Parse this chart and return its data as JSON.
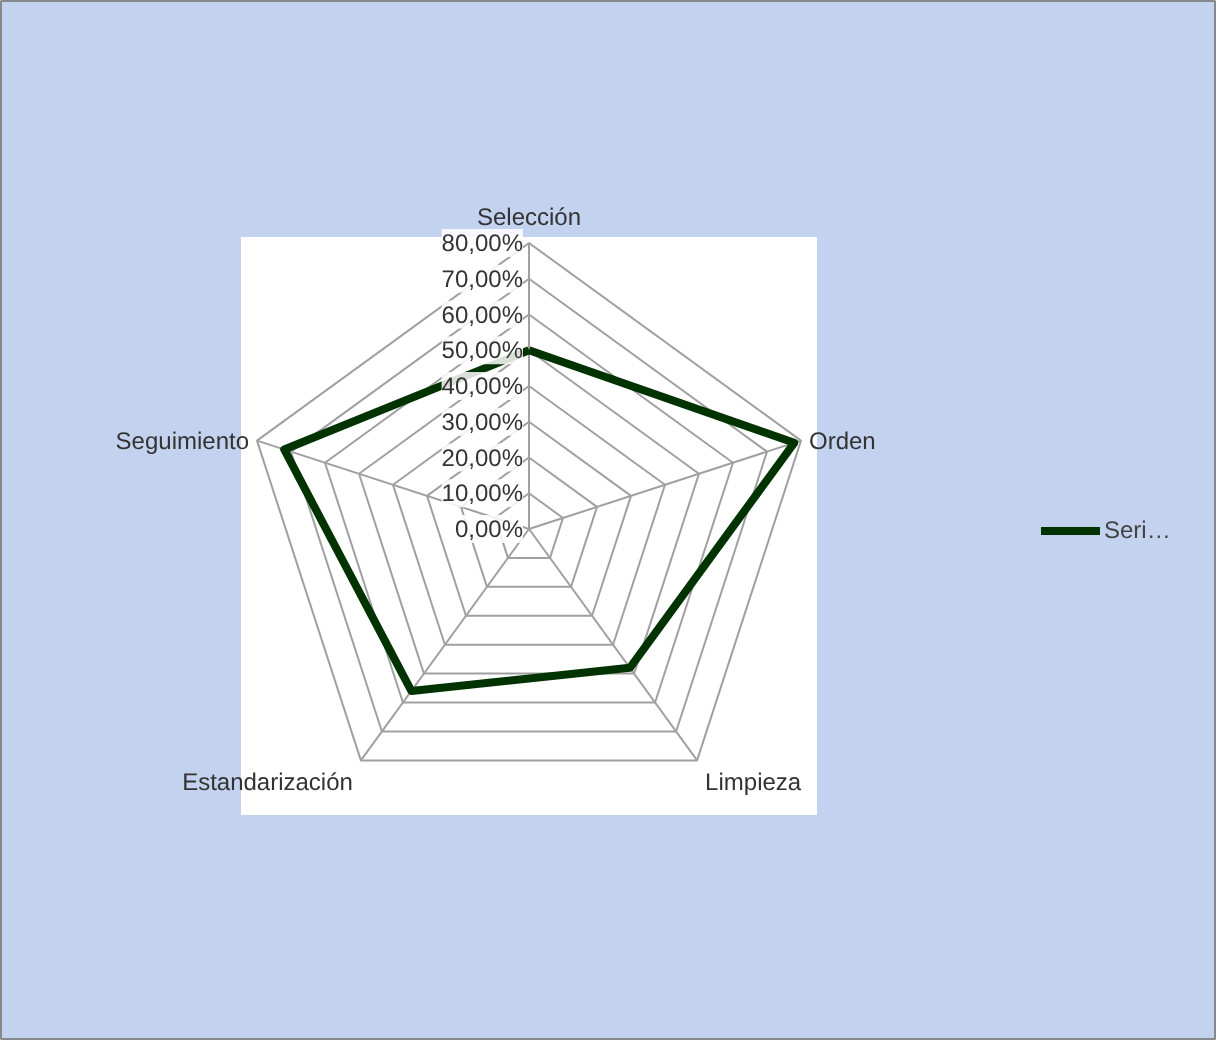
{
  "chart_data": {
    "type": "radar",
    "categories": [
      "Selección",
      "Orden",
      "Limpieza",
      "Estandarización",
      "Seguimiento"
    ],
    "series": [
      {
        "name": "Seri…",
        "color": "#003300",
        "values": [
          50,
          78,
          48,
          56,
          72
        ]
      }
    ],
    "ylim": [
      0,
      80
    ],
    "yticks": [
      {
        "value": 0,
        "label": "0,00%"
      },
      {
        "value": 10,
        "label": "10,00%"
      },
      {
        "value": 20,
        "label": "20,00%"
      },
      {
        "value": 30,
        "label": "30,00%"
      },
      {
        "value": 40,
        "label": "40,00%"
      },
      {
        "value": 50,
        "label": "50,00%"
      },
      {
        "value": 60,
        "label": "60,00%"
      },
      {
        "value": 70,
        "label": "70,00%"
      },
      {
        "value": 80,
        "label": "80,00%"
      }
    ],
    "grid": true,
    "legend": "right",
    "marker": "none",
    "line_style": "solid"
  }
}
